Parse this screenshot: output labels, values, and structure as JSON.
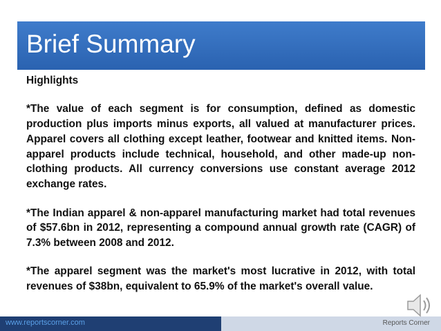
{
  "title": "Brief Summary",
  "body": [
    "Highlights",
    "*The value of each segment is for consumption, defined as domestic production plus imports minus exports, all valued at manufacturer prices. Apparel covers all clothing except leather, footwear and knitted items. Non-apparel products include technical, household, and other made-up non-clothing products. All currency conversions use constant average 2012 exchange rates.",
    "*The Indian apparel & non-apparel manufacturing market had total revenues of $57.6bn in 2012, representing a compound annual growth rate (CAGR) of 7.3% between 2008 and 2012.",
    "*The apparel segment was the market's most lucrative in 2012, with total revenues of $38bn, equivalent to 65.9% of the market's overall value."
  ],
  "footer": {
    "url": "www.reportscorner.com",
    "brand": "Reports Corner"
  }
}
